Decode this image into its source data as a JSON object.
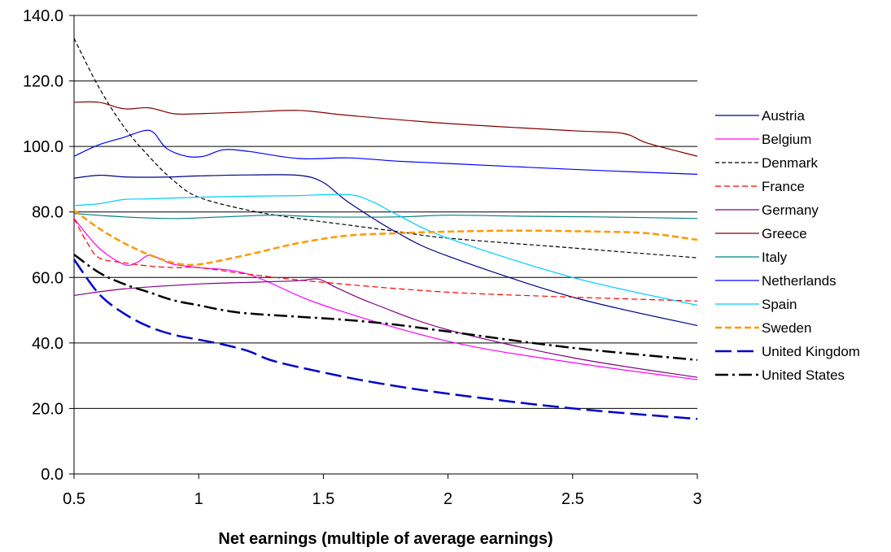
{
  "chart_data": {
    "type": "line",
    "xlabel": "Net earnings (multiple of average earnings)",
    "ylabel": "",
    "xlim": [
      0.5,
      3
    ],
    "ylim": [
      0,
      140
    ],
    "y_ticks": [
      "0.0",
      "20.0",
      "40.0",
      "60.0",
      "80.0",
      "100.0",
      "120.0",
      "140.0"
    ],
    "x_ticks": [
      "0.5",
      "1",
      "1.5",
      "2",
      "2.5",
      "3"
    ],
    "grid": "horizontal",
    "legend": "right",
    "series": [
      {
        "name": "Austria",
        "color": "#000080",
        "dash": "solid",
        "width": 1.2,
        "x": [
          0.5,
          0.6,
          0.7,
          0.8,
          0.9,
          1.0,
          1.2,
          1.4,
          1.5,
          1.6,
          1.8,
          2.0,
          2.5,
          3.0
        ],
        "y": [
          90.3,
          91.2,
          90.7,
          90.6,
          90.7,
          91.0,
          91.3,
          91.2,
          89.0,
          83.0,
          73.5,
          66.5,
          54.0,
          45.3
        ]
      },
      {
        "name": "Belgium",
        "color": "#ff00ff",
        "dash": "solid",
        "width": 1.2,
        "x": [
          0.5,
          0.6,
          0.7,
          0.75,
          0.8,
          0.85,
          0.9,
          1.0,
          1.2,
          1.5,
          2.0,
          2.5,
          3.0
        ],
        "y": [
          78.0,
          69.0,
          64.0,
          64.5,
          66.8,
          65.5,
          64.0,
          63.0,
          61.0,
          51.5,
          40.5,
          34.0,
          28.8
        ]
      },
      {
        "name": "Denmark",
        "color": "#000000",
        "dash": "5,3",
        "width": 1.2,
        "x": [
          0.5,
          0.6,
          0.7,
          0.8,
          0.9,
          1.0,
          1.2,
          1.4,
          1.6,
          1.8,
          2.0,
          2.5,
          3.0
        ],
        "y": [
          133.0,
          118.0,
          106.0,
          97.0,
          89.5,
          84.5,
          80.5,
          78.0,
          76.0,
          74.0,
          72.0,
          69.0,
          66.0
        ]
      },
      {
        "name": "France",
        "color": "#ff0000",
        "dash": "7,4",
        "width": 1.2,
        "x": [
          0.5,
          0.55,
          0.6,
          0.7,
          0.8,
          0.9,
          1.0,
          1.2,
          1.5,
          2.0,
          2.5,
          3.0
        ],
        "y": [
          78.0,
          71.0,
          66.0,
          64.5,
          63.5,
          63.0,
          63.0,
          61.0,
          58.5,
          55.5,
          54.0,
          52.8
        ]
      },
      {
        "name": "Germany",
        "color": "#800080",
        "dash": "solid",
        "width": 1.2,
        "x": [
          0.5,
          0.7,
          1.0,
          1.2,
          1.4,
          1.48,
          1.55,
          1.7,
          2.0,
          2.5,
          3.0
        ],
        "y": [
          54.5,
          56.5,
          58.0,
          58.5,
          59.0,
          59.5,
          57.0,
          52.0,
          44.0,
          35.5,
          29.5
        ]
      },
      {
        "name": "Greece",
        "color": "#800000",
        "dash": "solid",
        "width": 1.2,
        "x": [
          0.5,
          0.6,
          0.7,
          0.8,
          0.9,
          1.0,
          1.2,
          1.4,
          1.6,
          2.0,
          2.5,
          2.7,
          2.8,
          3.0
        ],
        "y": [
          113.5,
          113.5,
          111.5,
          111.8,
          110.0,
          110.0,
          110.5,
          111.0,
          109.5,
          107.0,
          104.8,
          104.0,
          101.0,
          97.0
        ]
      },
      {
        "name": "Italy",
        "color": "#008080",
        "dash": "solid",
        "width": 1.2,
        "x": [
          0.5,
          0.7,
          0.9,
          1.1,
          1.3,
          1.5,
          1.8,
          2.0,
          2.3,
          2.6,
          3.0
        ],
        "y": [
          79.5,
          78.5,
          78.0,
          78.5,
          79.0,
          78.5,
          78.5,
          79.0,
          78.7,
          78.5,
          78.0
        ]
      },
      {
        "name": "Netherlands",
        "color": "#0000ff",
        "dash": "solid",
        "width": 1.2,
        "x": [
          0.5,
          0.6,
          0.7,
          0.78,
          0.82,
          0.87,
          0.95,
          1.02,
          1.1,
          1.2,
          1.4,
          1.6,
          1.8,
          2.0,
          2.5,
          3.0
        ],
        "y": [
          97.0,
          100.5,
          102.8,
          104.8,
          104.2,
          99.5,
          97.0,
          97.0,
          99.0,
          98.5,
          96.3,
          96.5,
          95.5,
          94.8,
          93.0,
          91.5
        ]
      },
      {
        "name": "Spain",
        "color": "#00ccff",
        "dash": "solid",
        "width": 1.2,
        "x": [
          0.5,
          0.6,
          0.7,
          0.8,
          1.0,
          1.2,
          1.4,
          1.6,
          1.7,
          1.8,
          2.0,
          2.5,
          3.0
        ],
        "y": [
          82.0,
          82.5,
          83.8,
          84.0,
          84.5,
          84.8,
          85.0,
          85.3,
          83.0,
          79.0,
          72.0,
          60.0,
          51.5
        ]
      },
      {
        "name": "Sweden",
        "color": "#ff9900",
        "dash": "8,4",
        "width": 2.5,
        "x": [
          0.5,
          0.6,
          0.7,
          0.8,
          0.9,
          1.0,
          1.2,
          1.4,
          1.6,
          1.8,
          2.0,
          2.3,
          2.6,
          2.8,
          3.0
        ],
        "y": [
          80.5,
          75.0,
          70.5,
          67.0,
          64.5,
          64.0,
          67.0,
          70.5,
          72.8,
          73.5,
          74.0,
          74.3,
          74.0,
          73.5,
          71.5
        ]
      },
      {
        "name": "United Kingdom",
        "color": "#0000cc",
        "dash": "20,7",
        "width": 2.5,
        "x": [
          0.5,
          0.6,
          0.7,
          0.8,
          0.9,
          1.0,
          1.1,
          1.2,
          1.3,
          1.5,
          1.7,
          2.0,
          2.5,
          3.0
        ],
        "y": [
          65.5,
          55.0,
          49.0,
          45.0,
          42.5,
          41.0,
          39.5,
          37.5,
          34.5,
          31.0,
          28.0,
          24.5,
          20.0,
          16.8
        ]
      },
      {
        "name": "United States",
        "color": "#000000",
        "dash": "16,5,3,5",
        "width": 2.5,
        "x": [
          0.5,
          0.6,
          0.7,
          0.8,
          0.9,
          1.0,
          1.1,
          1.2,
          1.4,
          1.6,
          1.8,
          2.0,
          2.5,
          3.0
        ],
        "y": [
          67.0,
          61.5,
          58.0,
          55.5,
          53.0,
          51.5,
          50.0,
          49.0,
          48.0,
          47.0,
          45.5,
          43.5,
          38.5,
          34.8
        ]
      }
    ]
  }
}
